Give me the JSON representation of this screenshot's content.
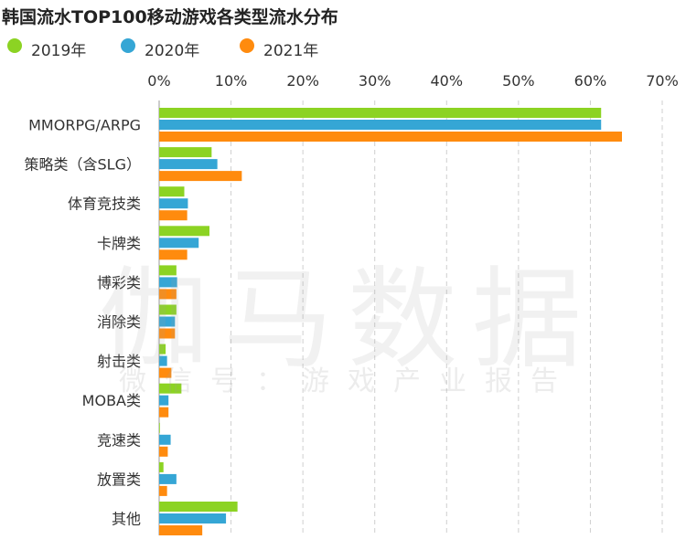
{
  "chart_data": {
    "type": "bar",
    "orientation": "horizontal",
    "title": "韩国流水TOP100移动游戏各类型流水分布",
    "categories": [
      "MMORPG/ARPG",
      "策略类（含SLG）",
      "体育竞技类",
      "卡牌类",
      "博彩类",
      "消除类",
      "射击类",
      "MOBA类",
      "竞速类",
      "放置类",
      "其他"
    ],
    "series": [
      {
        "name": "2019年",
        "color": "#8cd323",
        "values": [
          61.5,
          7.3,
          3.5,
          7.0,
          2.4,
          2.4,
          0.9,
          3.1,
          0.1,
          0.6,
          10.9
        ]
      },
      {
        "name": "2020年",
        "color": "#35a6d5",
        "values": [
          61.5,
          8.1,
          4.0,
          5.5,
          2.5,
          2.2,
          1.1,
          1.3,
          1.6,
          2.4,
          9.3
        ]
      },
      {
        "name": "2021年",
        "color": "#ff8b0e",
        "values": [
          64.4,
          11.5,
          3.9,
          3.9,
          2.4,
          2.2,
          1.7,
          1.3,
          1.2,
          1.1,
          6.0
        ]
      }
    ],
    "xlim": [
      0,
      70
    ],
    "ticks": [
      "0%",
      "10%",
      "20%",
      "30%",
      "40%",
      "50%",
      "60%",
      "70%"
    ],
    "grid": true,
    "legend_position": "top-left"
  },
  "watermark": {
    "main": "伽马数据",
    "sub": "微信号：游戏产业报告"
  }
}
